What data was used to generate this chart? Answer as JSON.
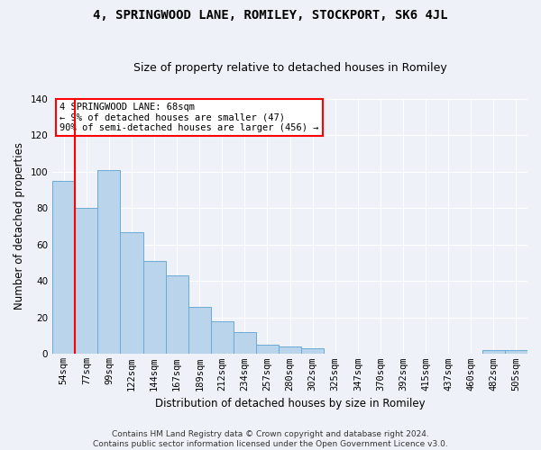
{
  "title": "4, SPRINGWOOD LANE, ROMILEY, STOCKPORT, SK6 4JL",
  "subtitle": "Size of property relative to detached houses in Romiley",
  "xlabel": "Distribution of detached houses by size in Romiley",
  "ylabel": "Number of detached properties",
  "categories": [
    "54sqm",
    "77sqm",
    "99sqm",
    "122sqm",
    "144sqm",
    "167sqm",
    "189sqm",
    "212sqm",
    "234sqm",
    "257sqm",
    "280sqm",
    "302sqm",
    "325sqm",
    "347sqm",
    "370sqm",
    "392sqm",
    "415sqm",
    "437sqm",
    "460sqm",
    "482sqm",
    "505sqm"
  ],
  "values": [
    95,
    80,
    101,
    67,
    51,
    43,
    26,
    18,
    12,
    5,
    4,
    3,
    0,
    0,
    0,
    0,
    0,
    0,
    0,
    2,
    2
  ],
  "bar_color": "#bad4ec",
  "bar_edge_color": "#6aaad4",
  "property_label": "4 SPRINGWOOD LANE: 68sqm",
  "annotation_line1": "← 9% of detached houses are smaller (47)",
  "annotation_line2": "90% of semi-detached houses are larger (456) →",
  "vline_x": 0.5,
  "ylim": [
    0,
    140
  ],
  "yticks": [
    0,
    20,
    40,
    60,
    80,
    100,
    120,
    140
  ],
  "footer1": "Contains HM Land Registry data © Crown copyright and database right 2024.",
  "footer2": "Contains public sector information licensed under the Open Government Licence v3.0.",
  "background_color": "#eef2f8",
  "grid_color": "#ffffff",
  "title_fontsize": 10,
  "subtitle_fontsize": 9,
  "axis_label_fontsize": 8.5,
  "tick_fontsize": 7.5,
  "annotation_fontsize": 7.5,
  "footer_fontsize": 6.5
}
